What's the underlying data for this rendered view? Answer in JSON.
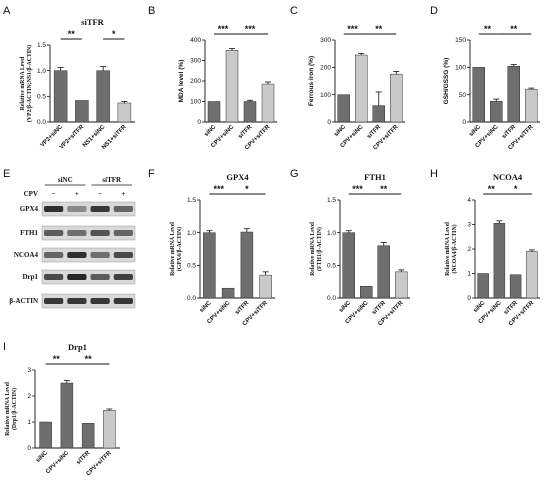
{
  "panel_letters": [
    "A",
    "B",
    "C",
    "D",
    "E",
    "F",
    "G",
    "H",
    "I"
  ],
  "colors": {
    "dark": "#6e6e6e",
    "light": "#c9c9c9",
    "white": "#ffffff",
    "axis": "#111111"
  },
  "chart_data": [
    {
      "id": "A",
      "type": "bar",
      "title": "siTFR",
      "ylabel": [
        "Relative mRNA Level",
        "(VP2/β-ACTIN;NS1/β-ACTIN)"
      ],
      "categories": [
        "VP2+siNC",
        "VP2+siTFR",
        "NS1+siNC",
        "NS1+siTFR"
      ],
      "values": [
        1.0,
        0.42,
        1.0,
        0.37
      ],
      "errors": [
        0.06,
        0.0,
        0.08,
        0.03
      ],
      "fills": [
        "dark",
        "dark",
        "dark",
        "light"
      ],
      "ylim": [
        0,
        1.5
      ],
      "yticks": [
        0,
        0.5,
        1.0,
        1.5
      ],
      "yticklabels": [
        "0.0",
        "0.5",
        "1.0",
        "1.5"
      ],
      "significance": [
        {
          "from": 0,
          "to": 1,
          "label": "**"
        },
        {
          "from": 2,
          "to": 3,
          "label": "*"
        }
      ]
    },
    {
      "id": "B",
      "type": "bar",
      "title": "",
      "ylabel": [
        "MDA level (%)"
      ],
      "categories": [
        "siNC",
        "CPV+siNC",
        "siTFR",
        "CPV+siTFR"
      ],
      "values": [
        100,
        350,
        100,
        185
      ],
      "errors": [
        0,
        8,
        6,
        10
      ],
      "fills": [
        "dark",
        "light",
        "dark",
        "light"
      ],
      "ylim": [
        0,
        400
      ],
      "yticks": [
        0,
        100,
        200,
        300,
        400
      ],
      "yticklabels": [
        "0",
        "100",
        "200",
        "300",
        "400"
      ],
      "significance": [
        {
          "from": 0,
          "to": 1,
          "label": "***"
        },
        {
          "from": 1,
          "to": 3,
          "label": "***"
        }
      ]
    },
    {
      "id": "C",
      "type": "bar",
      "title": "",
      "ylabel": [
        "Ferrous iron (%)"
      ],
      "categories": [
        "siNC",
        "CPV+siNC",
        "siTFR",
        "CPV+siTFR"
      ],
      "values": [
        100,
        245,
        60,
        175
      ],
      "errors": [
        0,
        6,
        50,
        10
      ],
      "fills": [
        "dark",
        "light",
        "dark",
        "light"
      ],
      "ylim": [
        0,
        300
      ],
      "yticks": [
        0,
        100,
        200,
        300
      ],
      "yticklabels": [
        "0",
        "100",
        "200",
        "300"
      ],
      "significance": [
        {
          "from": 0,
          "to": 1,
          "label": "***"
        },
        {
          "from": 1,
          "to": 3,
          "label": "**"
        }
      ]
    },
    {
      "id": "D",
      "type": "bar",
      "title": "",
      "ylabel": [
        "GSH/GSSG (%)"
      ],
      "categories": [
        "siNC",
        "CPV+siNC",
        "siTFR",
        "CPV+siTFR"
      ],
      "values": [
        100,
        38,
        102,
        60
      ],
      "errors": [
        0,
        4,
        3,
        2
      ],
      "fills": [
        "dark",
        "dark",
        "dark",
        "light"
      ],
      "ylim": [
        0,
        150
      ],
      "yticks": [
        0,
        50,
        100,
        150
      ],
      "yticklabels": [
        "0",
        "50",
        "100",
        "150"
      ],
      "significance": [
        {
          "from": 0,
          "to": 1,
          "label": "**"
        },
        {
          "from": 1,
          "to": 3,
          "label": "**"
        }
      ]
    },
    {
      "id": "F",
      "type": "bar",
      "title": "GPX4",
      "ylabel": [
        "Relative mRNA Level",
        "(GPX4/β-ACTIN)"
      ],
      "categories": [
        "siNC",
        "CPV+siNC",
        "siTFR",
        "CPV+siTFR"
      ],
      "values": [
        1.0,
        0.15,
        1.01,
        0.35
      ],
      "errors": [
        0.03,
        0.0,
        0.05,
        0.05
      ],
      "fills": [
        "dark",
        "dark",
        "dark",
        "light"
      ],
      "ylim": [
        0,
        1.5
      ],
      "yticks": [
        0,
        0.5,
        1.0,
        1.5
      ],
      "yticklabels": [
        "0.0",
        "0.5",
        "1.0",
        "1.5"
      ],
      "significance": [
        {
          "from": 0,
          "to": 1,
          "label": "***"
        },
        {
          "from": 1,
          "to": 3,
          "label": "*"
        }
      ]
    },
    {
      "id": "G",
      "type": "bar",
      "title": "FTH1",
      "ylabel": [
        "Relative mRNA Level",
        "(FTH1/β-ACTIN)"
      ],
      "categories": [
        "siNC",
        "CPV+siNC",
        "siTFR",
        "CPV+siTFR"
      ],
      "values": [
        1.0,
        0.18,
        0.8,
        0.4
      ],
      "errors": [
        0.03,
        0.0,
        0.05,
        0.03
      ],
      "fills": [
        "dark",
        "dark",
        "dark",
        "light"
      ],
      "ylim": [
        0,
        1.5
      ],
      "yticks": [
        0,
        0.5,
        1.0,
        1.5
      ],
      "yticklabels": [
        "0.0",
        "0.5",
        "1.0",
        "1.5"
      ],
      "significance": [
        {
          "from": 0,
          "to": 1,
          "label": "***"
        },
        {
          "from": 1,
          "to": 3,
          "label": "**"
        }
      ]
    },
    {
      "id": "H",
      "type": "bar",
      "title": "NCOA4",
      "ylabel": [
        "Relative mRNA Level",
        "(NCOA4/β-ACTIN)"
      ],
      "categories": [
        "siNC",
        "CPV+siNC",
        "siTFR",
        "CPV+siTFR"
      ],
      "values": [
        1.0,
        3.05,
        0.95,
        1.9
      ],
      "errors": [
        0,
        0.1,
        0,
        0.06
      ],
      "fills": [
        "dark",
        "dark",
        "dark",
        "light"
      ],
      "ylim": [
        0,
        4
      ],
      "yticks": [
        0,
        1,
        2,
        3,
        4
      ],
      "yticklabels": [
        "0",
        "1",
        "2",
        "3",
        "4"
      ],
      "significance": [
        {
          "from": 0,
          "to": 1,
          "label": "**"
        },
        {
          "from": 1,
          "to": 3,
          "label": "*"
        }
      ]
    },
    {
      "id": "I",
      "type": "bar",
      "title": "Drp1",
      "ylabel": [
        "Relative mRNA Level",
        "(Drp1/β-ACTIN)"
      ],
      "categories": [
        "siNC",
        "CPV+siNC",
        "siTFR",
        "CPV+siTFR"
      ],
      "values": [
        1.0,
        2.5,
        0.95,
        1.45
      ],
      "errors": [
        0,
        0.1,
        0,
        0.05
      ],
      "fills": [
        "dark",
        "dark",
        "dark",
        "light"
      ],
      "ylim": [
        0,
        3
      ],
      "yticks": [
        0,
        1,
        2,
        3
      ],
      "yticklabels": [
        "0",
        "1",
        "2",
        "3"
      ],
      "significance": [
        {
          "from": 0,
          "to": 1,
          "label": "**"
        },
        {
          "from": 1,
          "to": 3,
          "label": "**"
        }
      ]
    }
  ],
  "western_blot": {
    "group_labels": [
      "siNC",
      "siTFR"
    ],
    "treatment_label": "CPV",
    "treatments": [
      "−",
      "+",
      "−",
      "+"
    ],
    "proteins": [
      "GPX4",
      "FTH1",
      "NCOA4",
      "Drp1",
      "β-ACTIN"
    ],
    "band_intensity": [
      [
        0.85,
        0.35,
        0.8,
        0.55
      ],
      [
        0.6,
        0.5,
        0.65,
        0.55
      ],
      [
        0.55,
        0.85,
        0.5,
        0.7
      ],
      [
        0.7,
        0.9,
        0.6,
        0.75
      ],
      [
        0.8,
        0.8,
        0.8,
        0.8
      ]
    ]
  }
}
